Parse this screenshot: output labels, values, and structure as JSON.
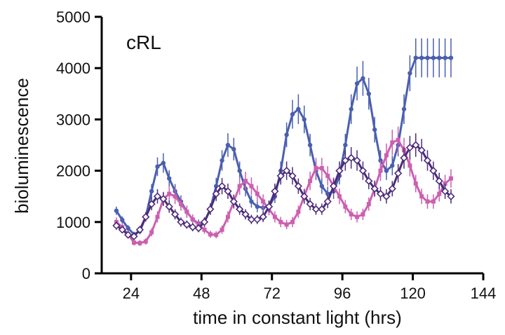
{
  "chart_data": {
    "type": "line",
    "title": "",
    "annotation": "cRL",
    "xlabel": "time in constant light (hrs)",
    "ylabel": "bioluminescence",
    "xlim": [
      14,
      144
    ],
    "ylim": [
      0,
      5000
    ],
    "xticks": [
      24,
      48,
      72,
      96,
      120,
      144
    ],
    "yticks": [
      0,
      1000,
      2000,
      3000,
      4000,
      5000
    ],
    "grid": false,
    "legend": "none",
    "x": [
      19,
      21,
      23,
      25,
      27,
      29,
      31,
      33,
      35,
      37,
      39,
      41,
      43,
      45,
      47,
      49,
      51,
      53,
      55,
      57,
      59,
      61,
      63,
      65,
      67,
      69,
      71,
      73,
      75,
      77,
      79,
      81,
      83,
      85,
      87,
      89,
      91,
      93,
      95,
      97,
      99,
      101,
      103,
      105,
      107,
      109,
      111,
      113,
      115,
      117,
      119,
      121,
      123,
      125,
      127,
      129,
      131,
      133
    ],
    "series": [
      {
        "color": "#4a5fb0",
        "marker": "circle",
        "values": [
          1220,
          1040,
          880,
          760,
          820,
          1100,
          1600,
          2080,
          2150,
          1850,
          1600,
          1400,
          1200,
          1050,
          970,
          1000,
          1250,
          1700,
          2200,
          2500,
          2420,
          2000,
          1650,
          1400,
          1300,
          1280,
          1300,
          1500,
          2000,
          2700,
          3100,
          3200,
          3000,
          2500,
          2000,
          1700,
          1550,
          1600,
          1900,
          2500,
          3200,
          3700,
          3800,
          3500,
          2800,
          2200,
          2000,
          2100,
          2500,
          3200,
          3900,
          4200,
          4200,
          4200,
          4200,
          4200,
          4200,
          4200
        ],
        "error": [
          80,
          70,
          60,
          50,
          60,
          90,
          140,
          180,
          190,
          160,
          140,
          120,
          100,
          90,
          80,
          90,
          110,
          160,
          200,
          230,
          220,
          180,
          150,
          120,
          110,
          110,
          110,
          130,
          180,
          240,
          280,
          290,
          270,
          220,
          180,
          150,
          140,
          150,
          170,
          220,
          290,
          330,
          340,
          310,
          250,
          200,
          180,
          190,
          220,
          290,
          350,
          380,
          380,
          380,
          380,
          380,
          380,
          380
        ]
      },
      {
        "color": "#cc5fb0",
        "marker": "square",
        "values": [
          1000,
          900,
          760,
          600,
          590,
          620,
          800,
          1100,
          1450,
          1550,
          1500,
          1350,
          1200,
          1050,
          950,
          850,
          760,
          750,
          850,
          1100,
          1400,
          1700,
          1800,
          1700,
          1550,
          1400,
          1250,
          1100,
          1000,
          950,
          1000,
          1200,
          1500,
          1800,
          2050,
          2050,
          1900,
          1700,
          1500,
          1300,
          1150,
          1100,
          1150,
          1350,
          1650,
          2000,
          2300,
          2550,
          2600,
          2400,
          2100,
          1750,
          1500,
          1400,
          1400,
          1550,
          1750,
          1850
        ],
        "error": [
          90,
          80,
          70,
          60,
          60,
          60,
          80,
          110,
          140,
          150,
          150,
          130,
          120,
          100,
          90,
          80,
          70,
          70,
          80,
          110,
          140,
          170,
          180,
          170,
          160,
          140,
          120,
          110,
          100,
          90,
          100,
          120,
          150,
          180,
          200,
          200,
          190,
          170,
          150,
          130,
          110,
          110,
          110,
          130,
          160,
          200,
          230,
          250,
          260,
          240,
          210,
          170,
          150,
          140,
          140,
          150,
          170,
          180
        ]
      },
      {
        "color": "#4b2c7a",
        "marker": "diamond-open",
        "values": [
          930,
          850,
          750,
          720,
          850,
          1100,
          1350,
          1500,
          1450,
          1300,
          1150,
          1000,
          950,
          900,
          880,
          1000,
          1250,
          1550,
          1700,
          1600,
          1400,
          1250,
          1150,
          1050,
          1050,
          1100,
          1300,
          1600,
          1900,
          2000,
          1900,
          1700,
          1500,
          1350,
          1250,
          1250,
          1400,
          1700,
          2000,
          2200,
          2250,
          2200,
          2000,
          1800,
          1650,
          1550,
          1500,
          1650,
          1950,
          2250,
          2450,
          2500,
          2400,
          2200,
          2000,
          1800,
          1600,
          1500
        ],
        "error": [
          80,
          70,
          60,
          60,
          70,
          90,
          120,
          140,
          130,
          120,
          100,
          90,
          80,
          80,
          80,
          90,
          110,
          140,
          160,
          150,
          130,
          110,
          100,
          90,
          90,
          100,
          120,
          150,
          170,
          180,
          170,
          150,
          140,
          120,
          110,
          110,
          130,
          150,
          180,
          200,
          210,
          200,
          180,
          160,
          150,
          140,
          140,
          150,
          180,
          210,
          230,
          230,
          220,
          200,
          180,
          160,
          150,
          140
        ]
      }
    ]
  }
}
